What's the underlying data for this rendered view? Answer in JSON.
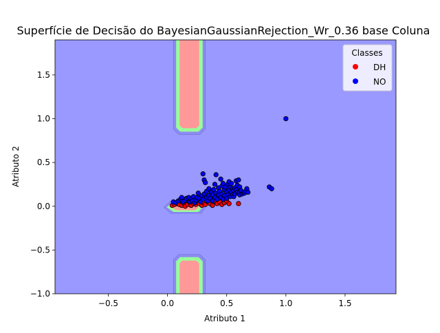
{
  "chart_data": {
    "type": "scatter",
    "title": "Superfície de Decisão do BayesianGaussianRejection_Wr_0.36 base Coluna",
    "xlabel": "Atributo 1",
    "ylabel": "Atributo 2",
    "xlim": [
      -0.95,
      1.93
    ],
    "ylim": [
      -1.0,
      1.9
    ],
    "xticks": [
      -0.5,
      0.0,
      0.5,
      1.0,
      1.5
    ],
    "yticks": [
      -1.0,
      -0.5,
      0.0,
      0.5,
      1.0,
      1.5
    ],
    "xtick_labels": [
      "−0.5",
      "0.0",
      "0.5",
      "1.0",
      "1.5"
    ],
    "ytick_labels": [
      "−1.0",
      "−0.5",
      "0.0",
      "0.5",
      "1.0",
      "1.5"
    ],
    "grid": false,
    "legend": {
      "title": "Classes",
      "placement": "top-right",
      "entries": [
        {
          "label": "DH",
          "color": "#ff0000"
        },
        {
          "label": "NO",
          "color": "#0000ff"
        }
      ]
    },
    "background_region": {
      "label": "NO",
      "color": "#9999ff"
    },
    "decision_regions": [
      {
        "name": "top-band",
        "x": [
          0.05,
          0.32
        ],
        "y": [
          0.82,
          1.9
        ],
        "colors": [
          "#8c8cf2",
          "#99ff99",
          "#ff9999"
        ]
      },
      {
        "name": "bottom-band",
        "x": [
          0.05,
          0.32
        ],
        "y": [
          -1.0,
          -0.55
        ],
        "colors": [
          "#8c8cf2",
          "#99ff99",
          "#ff9999"
        ]
      },
      {
        "name": "center-ring",
        "x": [
          -0.03,
          0.32
        ],
        "y": [
          -0.08,
          0.06
        ],
        "colors": [
          "#8c8cf2",
          "#99ff99",
          "#ff9999"
        ]
      }
    ],
    "series": [
      {
        "name": "DH",
        "color": "#ff0000",
        "points": [
          [
            0.04,
            0.01
          ],
          [
            0.06,
            0.02
          ],
          [
            0.08,
            0.03
          ],
          [
            0.1,
            0.02
          ],
          [
            0.12,
            0.01
          ],
          [
            0.14,
            0.03
          ],
          [
            0.15,
            0.0
          ],
          [
            0.17,
            0.02
          ],
          [
            0.19,
            0.04
          ],
          [
            0.2,
            0.01
          ],
          [
            0.22,
            0.03
          ],
          [
            0.24,
            0.02
          ],
          [
            0.25,
            0.05
          ],
          [
            0.27,
            0.03
          ],
          [
            0.29,
            0.01
          ],
          [
            0.3,
            0.04
          ],
          [
            0.32,
            0.02
          ],
          [
            0.34,
            0.05
          ],
          [
            0.36,
            0.03
          ],
          [
            0.38,
            0.01
          ],
          [
            0.4,
            0.06
          ],
          [
            0.42,
            0.03
          ],
          [
            0.44,
            0.05
          ],
          [
            0.46,
            0.02
          ],
          [
            0.48,
            0.04
          ],
          [
            0.5,
            0.06
          ],
          [
            0.52,
            0.03
          ],
          [
            0.6,
            0.03
          ],
          [
            0.18,
            0.06
          ],
          [
            0.28,
            0.07
          ]
        ]
      },
      {
        "name": "NO",
        "color": "#0000ff",
        "points": [
          [
            0.05,
            0.05
          ],
          [
            0.07,
            0.04
          ],
          [
            0.09,
            0.06
          ],
          [
            0.11,
            0.08
          ],
          [
            0.12,
            0.1
          ],
          [
            0.13,
            0.05
          ],
          [
            0.15,
            0.07
          ],
          [
            0.16,
            0.09
          ],
          [
            0.18,
            0.1
          ],
          [
            0.19,
            0.05
          ],
          [
            0.2,
            0.08
          ],
          [
            0.21,
            0.06
          ],
          [
            0.22,
            0.11
          ],
          [
            0.23,
            0.04
          ],
          [
            0.24,
            0.07
          ],
          [
            0.25,
            0.1
          ],
          [
            0.26,
            0.15
          ],
          [
            0.27,
            0.09
          ],
          [
            0.28,
            0.05
          ],
          [
            0.29,
            0.12
          ],
          [
            0.3,
            0.37
          ],
          [
            0.3,
            0.08
          ],
          [
            0.31,
            0.3
          ],
          [
            0.31,
            0.14
          ],
          [
            0.32,
            0.27
          ],
          [
            0.33,
            0.1
          ],
          [
            0.33,
            0.17
          ],
          [
            0.34,
            0.06
          ],
          [
            0.35,
            0.12
          ],
          [
            0.35,
            0.2
          ],
          [
            0.36,
            0.09
          ],
          [
            0.37,
            0.16
          ],
          [
            0.38,
            0.13
          ],
          [
            0.38,
            0.06
          ],
          [
            0.39,
            0.19
          ],
          [
            0.4,
            0.1
          ],
          [
            0.4,
            0.25
          ],
          [
            0.41,
            0.36
          ],
          [
            0.41,
            0.15
          ],
          [
            0.42,
            0.08
          ],
          [
            0.43,
            0.21
          ],
          [
            0.43,
            0.13
          ],
          [
            0.44,
            0.17
          ],
          [
            0.45,
            0.1
          ],
          [
            0.45,
            0.31
          ],
          [
            0.46,
            0.23
          ],
          [
            0.46,
            0.14
          ],
          [
            0.47,
            0.08
          ],
          [
            0.47,
            0.26
          ],
          [
            0.48,
            0.19
          ],
          [
            0.48,
            0.12
          ],
          [
            0.49,
            0.22
          ],
          [
            0.5,
            0.16
          ],
          [
            0.5,
            0.09
          ],
          [
            0.51,
            0.25
          ],
          [
            0.51,
            0.13
          ],
          [
            0.52,
            0.19
          ],
          [
            0.52,
            0.28
          ],
          [
            0.53,
            0.11
          ],
          [
            0.53,
            0.22
          ],
          [
            0.54,
            0.16
          ],
          [
            0.54,
            0.26
          ],
          [
            0.55,
            0.13
          ],
          [
            0.55,
            0.2
          ],
          [
            0.56,
            0.18
          ],
          [
            0.56,
            0.11
          ],
          [
            0.57,
            0.21
          ],
          [
            0.57,
            0.14
          ],
          [
            0.58,
            0.19
          ],
          [
            0.58,
            0.29
          ],
          [
            0.59,
            0.16
          ],
          [
            0.59,
            0.24
          ],
          [
            0.6,
            0.3
          ],
          [
            0.6,
            0.15
          ],
          [
            0.61,
            0.22
          ],
          [
            0.61,
            0.13
          ],
          [
            0.62,
            0.18
          ],
          [
            0.63,
            0.14
          ],
          [
            0.64,
            0.16
          ],
          [
            0.65,
            0.15
          ],
          [
            0.66,
            0.17
          ],
          [
            0.67,
            0.2
          ],
          [
            0.68,
            0.16
          ],
          [
            0.86,
            0.22
          ],
          [
            0.88,
            0.2
          ],
          [
            1.0,
            1.0
          ]
        ]
      }
    ]
  }
}
